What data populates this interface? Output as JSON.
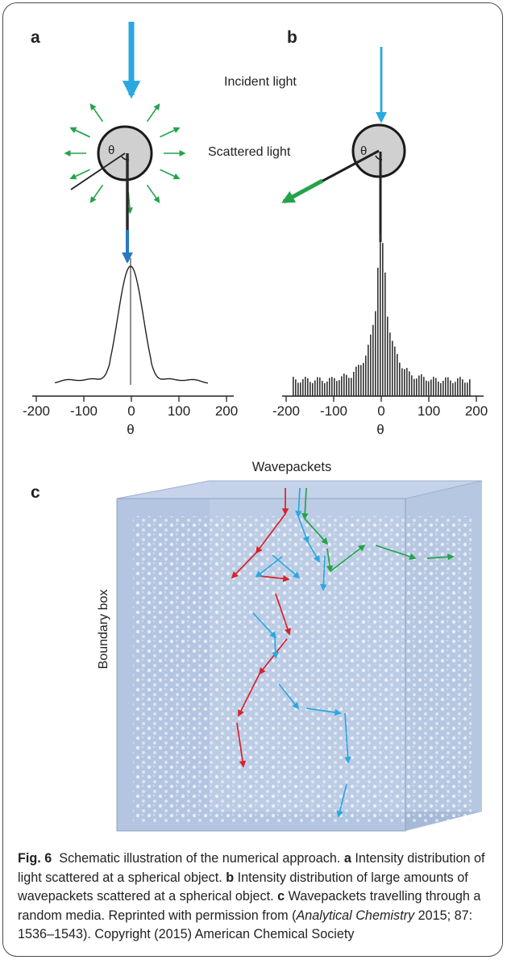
{
  "panels": {
    "a": {
      "label": "a",
      "xticks": [
        "-200",
        "-100",
        "0",
        "100",
        "200"
      ],
      "xlabel": "θ",
      "angle_symbol": "θ"
    },
    "b": {
      "label": "b",
      "xticks": [
        "-200",
        "-100",
        "0",
        "100",
        "200"
      ],
      "xlabel": "θ",
      "angle_symbol": "θ"
    },
    "c": {
      "label": "c",
      "title": "Wavepackets",
      "side_label": "Boundary box"
    }
  },
  "annotations": {
    "incident": "Incident light",
    "scattered": "Scattered light"
  },
  "colors": {
    "incident_blue": "#2aa8e0",
    "scatter_green": "#24a34a",
    "red": "#d9222a",
    "box_front": "#a9bfdc",
    "box_top": "#c5d4ea",
    "box_side": "#9fb5d3"
  },
  "caption": {
    "fig_label": "Fig. 6",
    "intro": "Schematic illustration of the numerical approach.",
    "a_label": "a",
    "a_text": "Intensity distribution of light scattered at a spherical object.",
    "b_label": "b",
    "b_text": "Intensity distribution of large amounts of wavepackets scattered at a spherical object.",
    "c_label": "c",
    "c_text": "Wavepackets travelling through a random media. Reprinted with permission from (",
    "journal": "Analytical Chemistry",
    "ref_tail": " 2015; 87: 1536–1543). Copyright (2015) American Chemical Society"
  }
}
